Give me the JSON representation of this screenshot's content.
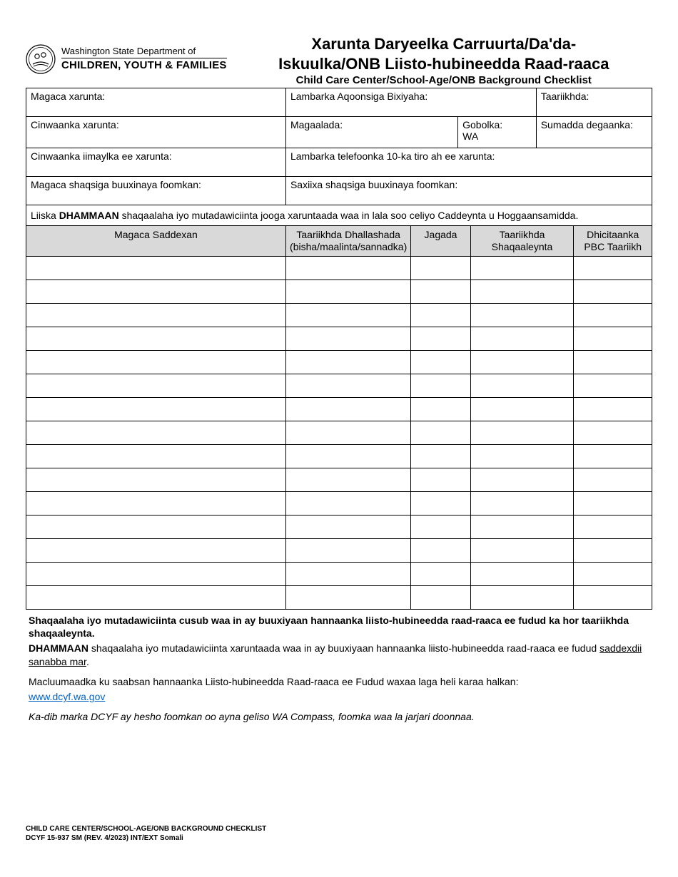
{
  "logo": {
    "dept_line": "Washington State Department of",
    "cyf_line": "CHILDREN, YOUTH & FAMILIES"
  },
  "title": {
    "line1": "Xarunta Daryeelka Carruurta/Da'da-",
    "line2": "Iskuulka/ONB Liisto-hubineedda Raad-raaca",
    "sub": "Child Care Center/School-Age/ONB Background Checklist"
  },
  "fields": {
    "facility_name": "Magaca xarunta:",
    "provider_id": "Lambarka Aqoonsiga Bixiyaha:",
    "date": "Taariikhda:",
    "facility_address": "Cinwaanka xarunta:",
    "city": "Magaalada:",
    "state_label": "Gobolka:",
    "state_value": "WA",
    "zip": "Sumadda degaanka:",
    "facility_email": "Cinwaanka iimaylka ee xarunta:",
    "facility_phone": "Lambarka telefoonka 10-ka tiro ah ee xarunta:",
    "person_name": "Magaca shaqsiga buuxinaya foomkan:",
    "person_signature": "Saxiixa shaqsiga buuxinaya foomkan:"
  },
  "instruction": {
    "prefix": "Liiska ",
    "bold": "DHAMMAAN",
    "suffix": " shaqaalaha iyo mutadawiciinta jooga xaruntaada waa in lala soo celiyo Caddeynta u Hoggaansamidda."
  },
  "columns": {
    "name": "Magaca Saddexan",
    "dob_line1": "Taariikhda Dhallashada",
    "dob_line2": "(bisha/maalinta/sannadka)",
    "role": "Jagada",
    "employ_date_line1": "Taariikhda",
    "employ_date_line2": "Shaqaaleynta",
    "pbc_line1": "Dhicitaanka",
    "pbc_line2": "PBC Taariikh"
  },
  "row_count": 15,
  "notes": {
    "para1": "Shaqaalaha iyo mutadawiciinta cusub waa in ay buuxiyaan hannaanka liisto-hubineedda raad-raaca ee fudud ka hor taariikhda shaqaaleynta.",
    "para2_bold": "DHAMMAAN",
    "para2_rest": " shaqaalaha iyo mutadawiciinta xaruntaada waa in ay buuxiyaan hannaanka liisto-hubineedda raad-raaca ee fudud ",
    "para2_underline": "saddexdii sanabba mar",
    "para3": "Macluumaadka ku saabsan hannaanka Liisto-hubineedda Raad-raaca ee Fudud waxaa laga heli karaa halkan:",
    "link_text": "www.dcyf.wa.gov",
    "link_href": "http://www.dcyf.wa.gov",
    "para4": "Ka-dib marka DCYF ay hesho foomkan oo ayna geliso WA Compass, foomka waa la jarjari doonnaa."
  },
  "footer": {
    "line1": "CHILD CARE CENTER/SCHOOL-AGE/ONB BACKGROUND CHECKLIST",
    "line2": "DCYF 15-937 SM (REV. 4/2023) INT/EXT Somali"
  },
  "colors": {
    "header_bg": "#d9d9d9",
    "link": "#0563c1",
    "border": "#000000",
    "text": "#000000"
  }
}
